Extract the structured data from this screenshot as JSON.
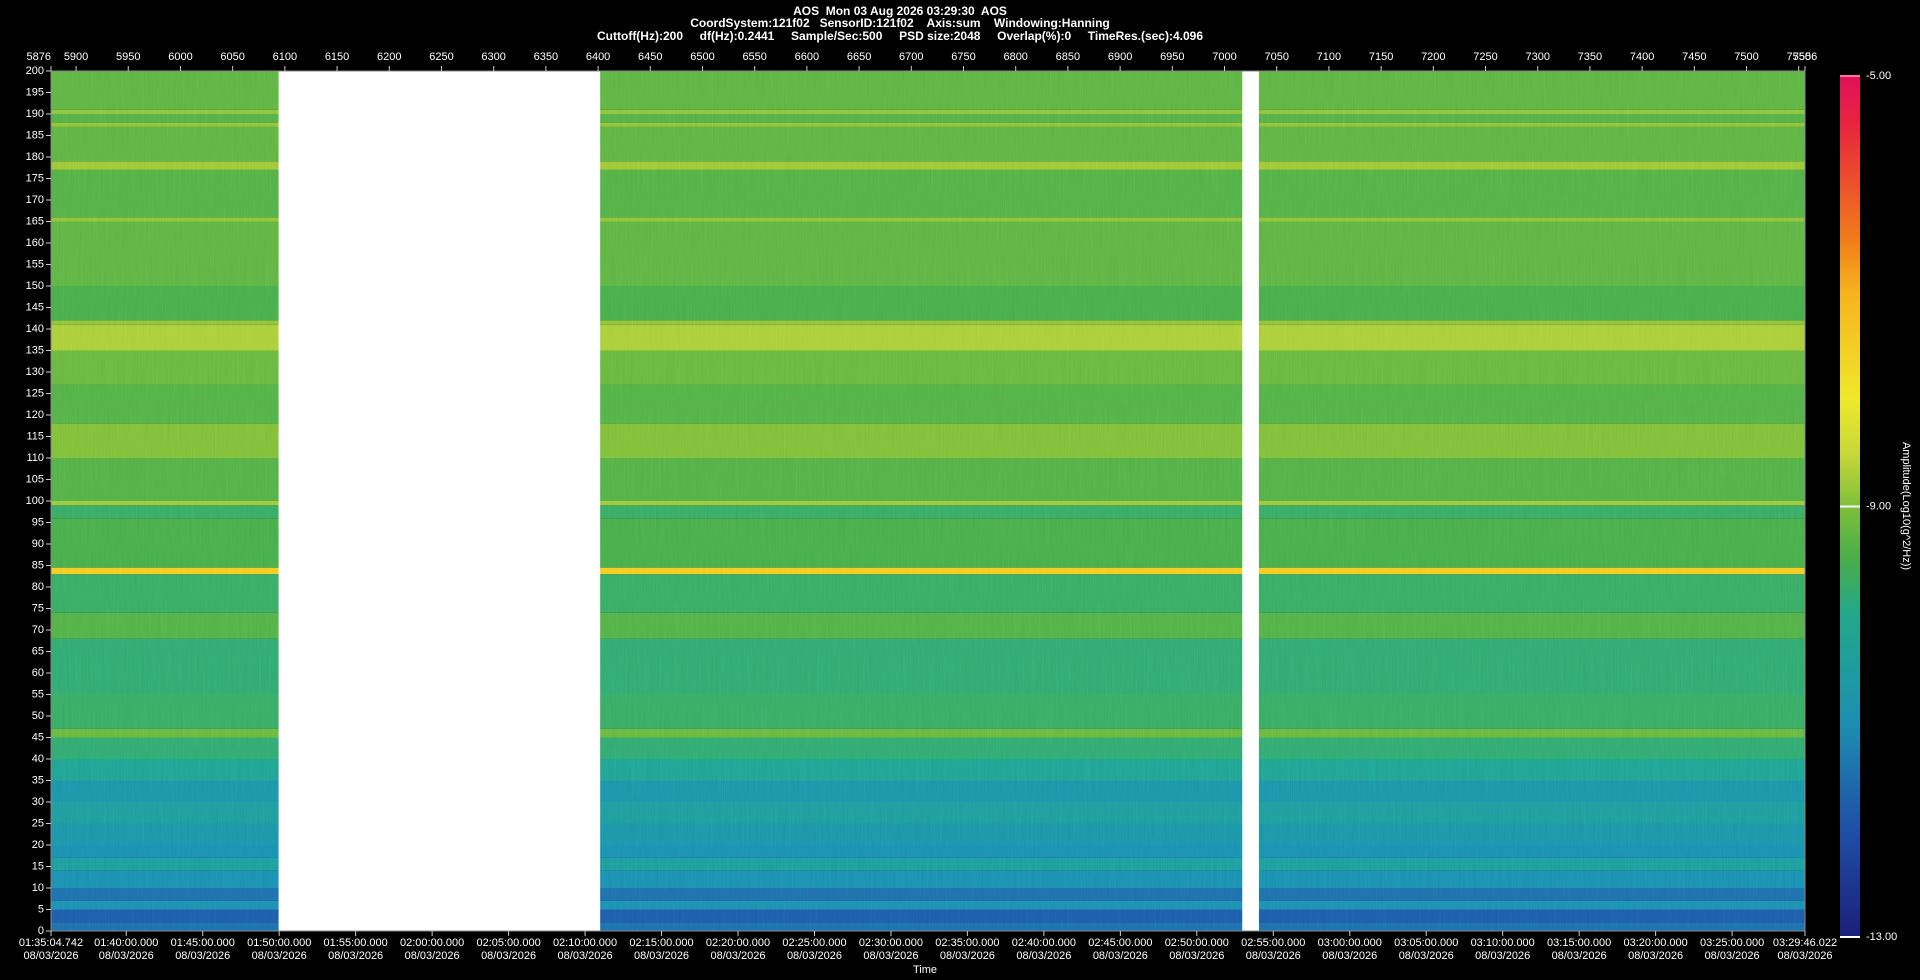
{
  "chart_data": {
    "type": "spectrogram",
    "title": "AOS  Mon 03 Aug 2026 03:29:30  AOS",
    "subtitle": [
      "CoordSystem:121f02   SensorID:121f02    Axis:sum    Windowing:Hanning",
      "Cuttoff(Hz):200     df(Hz):0.2441     Sample/Sec:500     PSD size:2048     Overlap(%):0     TimeRes.(sec):4.096"
    ],
    "xlabel": "Time",
    "colorbar_label": "Amplitude(Log10(g^2/Hz))",
    "xlim": [
      5876,
      7556
    ],
    "xticks": [
      5876,
      5900,
      5950,
      6000,
      6050,
      6100,
      6150,
      6200,
      6250,
      6300,
      6350,
      6400,
      6450,
      6500,
      6550,
      6600,
      6650,
      6700,
      6750,
      6800,
      6850,
      6900,
      6950,
      7000,
      7050,
      7100,
      7150,
      7200,
      7250,
      7300,
      7350,
      7400,
      7450,
      7500,
      7550,
      7556
    ],
    "x2lim": [
      5704.742,
      12586.022
    ],
    "x2ticks": [
      {
        "value": 5704.742,
        "label": "01:35:04.742",
        "date": "08/03/2026"
      },
      {
        "value": 6000,
        "label": "01:40:00.000",
        "date": "08/03/2026"
      },
      {
        "value": 6300,
        "label": "01:45:00.000",
        "date": "08/03/2026"
      },
      {
        "value": 6600,
        "label": "01:50:00.000",
        "date": "08/03/2026"
      },
      {
        "value": 6900,
        "label": "01:55:00.000",
        "date": "08/03/2026"
      },
      {
        "value": 7200,
        "label": "02:00:00.000",
        "date": "08/03/2026"
      },
      {
        "value": 7500,
        "label": "02:05:00.000",
        "date": "08/03/2026"
      },
      {
        "value": 7800,
        "label": "02:10:00.000",
        "date": "08/03/2026"
      },
      {
        "value": 8100,
        "label": "02:15:00.000",
        "date": "08/03/2026"
      },
      {
        "value": 8400,
        "label": "02:20:00.000",
        "date": "08/03/2026"
      },
      {
        "value": 8700,
        "label": "02:25:00.000",
        "date": "08/03/2026"
      },
      {
        "value": 9000,
        "label": "02:30:00.000",
        "date": "08/03/2026"
      },
      {
        "value": 9300,
        "label": "02:35:00.000",
        "date": "08/03/2026"
      },
      {
        "value": 9600,
        "label": "02:40:00.000",
        "date": "08/03/2026"
      },
      {
        "value": 9900,
        "label": "02:45:00.000",
        "date": "08/03/2026"
      },
      {
        "value": 10200,
        "label": "02:50:00.000",
        "date": "08/03/2026"
      },
      {
        "value": 10500,
        "label": "02:55:00.000",
        "date": "08/03/2026"
      },
      {
        "value": 10800,
        "label": "03:00:00.000",
        "date": "08/03/2026"
      },
      {
        "value": 11100,
        "label": "03:05:00.000",
        "date": "08/03/2026"
      },
      {
        "value": 11400,
        "label": "03:10:00.000",
        "date": "08/03/2026"
      },
      {
        "value": 11700,
        "label": "03:15:00.000",
        "date": "08/03/2026"
      },
      {
        "value": 12000,
        "label": "03:20:00.000",
        "date": "08/03/2026"
      },
      {
        "value": 12300,
        "label": "03:25:00.000",
        "date": "08/03/2026"
      },
      {
        "value": 12586.022,
        "label": "03:29:46.022",
        "date": "08/03/2026"
      }
    ],
    "ylim": [
      0,
      200
    ],
    "yticks": [
      0,
      5,
      10,
      15,
      20,
      25,
      30,
      35,
      40,
      45,
      50,
      55,
      60,
      65,
      70,
      75,
      80,
      85,
      90,
      95,
      100,
      105,
      110,
      115,
      120,
      125,
      130,
      135,
      140,
      145,
      150,
      155,
      160,
      165,
      170,
      175,
      180,
      185,
      190,
      195,
      200
    ],
    "clim": [
      -13,
      -5
    ],
    "cticks": [
      {
        "value": -13,
        "label": "-13.00"
      },
      {
        "value": -9,
        "label": "-9.00"
      },
      {
        "value": -5,
        "label": "-5.00"
      }
    ],
    "gaps": [
      [
        6094,
        6402
      ],
      [
        7017,
        7033
      ]
    ],
    "bands": {
      "from": [
        0,
        2,
        5,
        7,
        10,
        14,
        17,
        20,
        25,
        30,
        35,
        40,
        45,
        47,
        55,
        68,
        74,
        83,
        84.5,
        96,
        99,
        100,
        110,
        118,
        127,
        135,
        141,
        142,
        150,
        165,
        166,
        177,
        179,
        187,
        188,
        190,
        191
      ],
      "to": [
        2,
        5,
        7,
        10,
        14,
        17,
        20,
        25,
        30,
        35,
        40,
        45,
        47,
        55,
        68,
        74,
        83,
        84.5,
        96,
        99,
        100,
        110,
        118,
        127,
        135,
        141,
        142,
        150,
        165,
        166,
        177,
        179,
        187,
        188,
        190,
        191,
        200
      ],
      "amplitude": [
        -11.5,
        -11.8,
        -11,
        -11.5,
        -11,
        -10.5,
        -11,
        -10.8,
        -10.5,
        -10.8,
        -10.2,
        -9.8,
        -9.2,
        -9.7,
        -9.8,
        -9.4,
        -9.7,
        -7.5,
        -9.5,
        -9.7,
        -8.8,
        -9.4,
        -9,
        -9.4,
        -9.2,
        -8.7,
        -8.9,
        -9.5,
        -9.3,
        -8.9,
        -9.4,
        -8.8,
        -9.3,
        -8.9,
        -9.4,
        -8.9,
        -9.3
      ]
    }
  }
}
